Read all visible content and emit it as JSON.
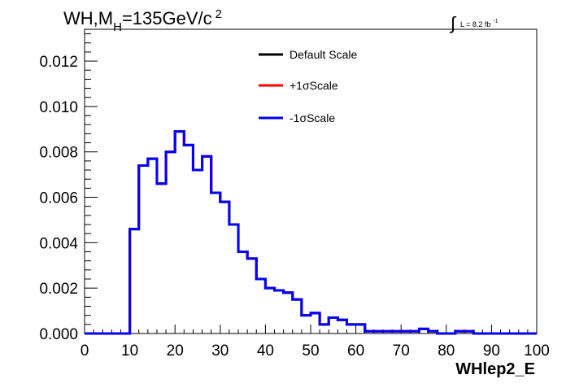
{
  "chart_data": {
    "type": "line",
    "title_main": "WH,M",
    "title_sub": "H",
    "title_rest": "=135GeV/c",
    "title_sup": "2",
    "lumi_integral": "∫",
    "lumi_text": "L = 8.2 fb",
    "lumi_sup": "-1",
    "xlabel": "WHlep2_E",
    "xlim": [
      0,
      100
    ],
    "ylim": [
      0,
      0.0134
    ],
    "x_ticks": [
      0,
      10,
      20,
      30,
      40,
      50,
      60,
      70,
      80,
      90,
      100
    ],
    "x_tick_labels": [
      "0",
      "10",
      "20",
      "30",
      "40",
      "50",
      "60",
      "70",
      "80",
      "90",
      "100"
    ],
    "y_ticks": [
      0,
      0.002,
      0.004,
      0.006,
      0.008,
      0.01,
      0.012
    ],
    "y_tick_labels": [
      "0.000",
      "0.002",
      "0.004",
      "0.006",
      "0.008",
      "0.010",
      "0.012"
    ],
    "bin_edges": [
      0,
      2,
      4,
      6,
      8,
      10,
      12,
      14,
      16,
      18,
      20,
      22,
      24,
      26,
      28,
      30,
      32,
      34,
      36,
      38,
      40,
      42,
      44,
      46,
      48,
      50,
      52,
      54,
      56,
      58,
      60,
      62,
      64,
      66,
      68,
      70,
      72,
      74,
      76,
      78,
      80,
      82,
      84,
      86,
      88,
      90,
      92,
      94,
      96,
      98,
      100
    ],
    "series": [
      {
        "name": "Default Scale",
        "color": "#000000",
        "values": [
          0,
          0,
          0,
          0,
          0,
          0.0046,
          0.0074,
          0.0077,
          0.0066,
          0.008,
          0.0089,
          0.0083,
          0.0072,
          0.0078,
          0.0062,
          0.0058,
          0.0048,
          0.0036,
          0.0033,
          0.0024,
          0.002,
          0.0019,
          0.0018,
          0.0015,
          0.0008,
          0.0009,
          0.0004,
          0.0007,
          0.0006,
          0.0004,
          0.0004,
          0.0001,
          0.0001,
          0.0001,
          0.0001,
          0.0001,
          0.0001,
          0.0002,
          0.0001,
          0.0,
          0.0,
          0.0001,
          0.0001,
          0.0,
          0.0,
          0.0,
          0.0,
          0.0,
          0.0,
          0.0
        ]
      },
      {
        "name": "+1σScale",
        "color": "#ff0000",
        "values": [
          0,
          0,
          0,
          0,
          0,
          0.0046,
          0.0074,
          0.0077,
          0.0066,
          0.008,
          0.0089,
          0.0083,
          0.0072,
          0.0078,
          0.0062,
          0.0058,
          0.0048,
          0.0036,
          0.0033,
          0.0024,
          0.002,
          0.0019,
          0.0018,
          0.0015,
          0.0008,
          0.0009,
          0.0004,
          0.0007,
          0.0006,
          0.0004,
          0.0004,
          0.0001,
          0.0001,
          0.0001,
          0.0001,
          0.0001,
          0.0001,
          0.0002,
          0.0001,
          0.0,
          0.0,
          0.0001,
          0.0001,
          0.0,
          0.0,
          0.0,
          0.0,
          0.0,
          0.0,
          0.0
        ]
      },
      {
        "name": "-1σScale",
        "color": "#0000ff",
        "values": [
          0,
          0,
          0,
          0,
          0,
          0.0046,
          0.0074,
          0.0077,
          0.0066,
          0.008,
          0.0089,
          0.0083,
          0.0072,
          0.0078,
          0.0062,
          0.0058,
          0.0048,
          0.0036,
          0.0033,
          0.0024,
          0.002,
          0.0019,
          0.0018,
          0.0015,
          0.0008,
          0.0009,
          0.0004,
          0.0007,
          0.0006,
          0.0004,
          0.0004,
          0.0001,
          0.0001,
          0.0001,
          0.0001,
          0.0001,
          0.0001,
          0.0002,
          0.0001,
          0.0,
          0.0,
          0.0001,
          0.0001,
          0.0,
          0.0,
          0.0,
          0.0,
          0.0,
          0.0,
          0.0
        ]
      }
    ],
    "legend": "top-right",
    "grid": false
  }
}
